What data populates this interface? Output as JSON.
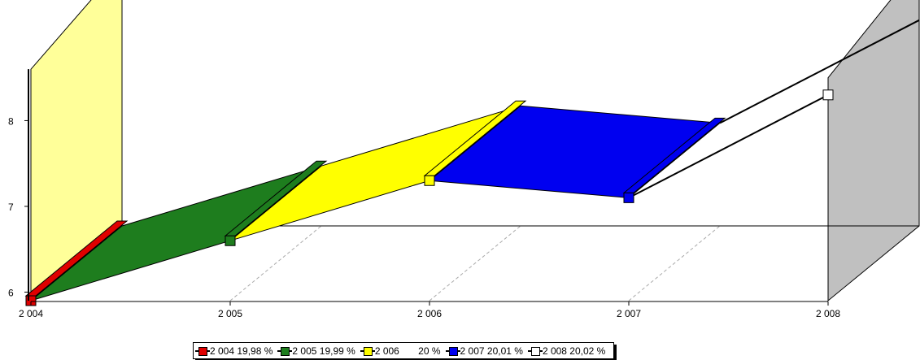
{
  "chart_data": {
    "type": "area",
    "categories": [
      "2 004",
      "2 005",
      "2 006",
      "2 007",
      "2 008"
    ],
    "series": [
      {
        "name": "2 004 19,98 %",
        "legend": "2 004 19,98 %",
        "color": "#e00000",
        "values": [
          5.9,
          6.6,
          7.3,
          7.1,
          8.3
        ]
      },
      {
        "name": "2 005 19,99 %",
        "legend": "2 005 19,99 %",
        "color": "#1e7d1e"
      },
      {
        "name": "2 006 20 %",
        "legend": "2 006       20 %",
        "color": "#ffff00"
      },
      {
        "name": "2 007 20,01 %",
        "legend": "2 007 20,01 %",
        "color": "#0000f0"
      },
      {
        "name": "2 008 20,02 %",
        "legend": "2 008 20,02 %",
        "color": "#ffffff"
      }
    ],
    "y_ticks": [
      6,
      7,
      8
    ],
    "ylim": [
      5.9,
      8.95
    ],
    "grid": true,
    "legend_position": "bottom",
    "view": "3d",
    "left_wall_color": "#ffff99",
    "right_wall_color": "#c0c0c0"
  }
}
